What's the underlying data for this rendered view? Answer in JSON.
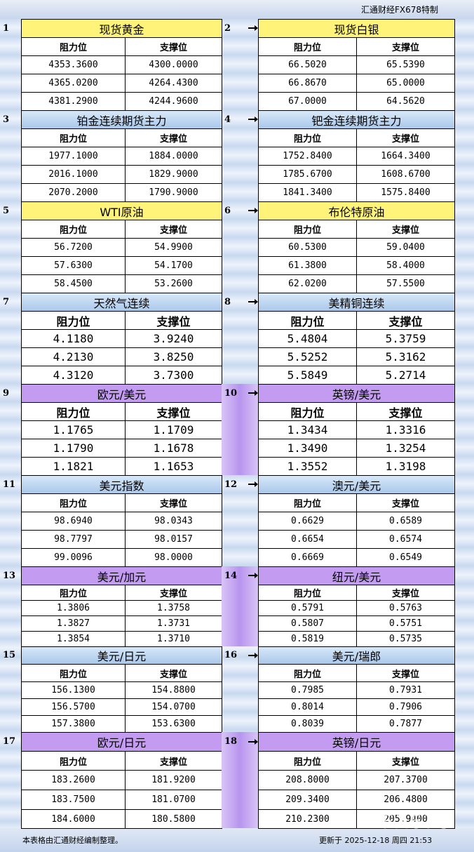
{
  "header": {
    "title": "汇通财经FX678特制"
  },
  "blocks": [
    {
      "number": "1",
      "title": "现货黄金",
      "color": "#fff37a",
      "headers": [
        "阻力位",
        "支撑位"
      ],
      "rows": [
        [
          "4353.3600",
          "4300.0000"
        ],
        [
          "4365.0200",
          "4264.4300"
        ],
        [
          "4381.2900",
          "4244.9600"
        ]
      ]
    },
    {
      "number": "2",
      "title": "现货白银",
      "color": "#fff37a",
      "headers": [
        "阻力位",
        "支撑位"
      ],
      "rows": [
        [
          "66.5020",
          "65.5390"
        ],
        [
          "66.8670",
          "65.0000"
        ],
        [
          "67.0000",
          "64.5620"
        ]
      ]
    },
    {
      "number": "3",
      "title": "铂金连续期货主力",
      "color": "#b9d6f2",
      "headers": [
        "阻力位",
        "支撑位"
      ],
      "rows": [
        [
          "1977.1000",
          "1884.0000"
        ],
        [
          "2016.1000",
          "1829.9000"
        ],
        [
          "2070.2000",
          "1790.9000"
        ]
      ]
    },
    {
      "number": "4",
      "title": "钯金连续期货主力",
      "color": "#b9d6f2",
      "headers": [
        "阻力位",
        "支撑位"
      ],
      "rows": [
        [
          "1752.8400",
          "1664.3400"
        ],
        [
          "1785.6700",
          "1608.6700"
        ],
        [
          "1841.3400",
          "1575.8400"
        ]
      ]
    },
    {
      "number": "5",
      "title": "WTI原油",
      "color": "#fff37a",
      "headers": [
        "阻力位",
        "支撑位"
      ],
      "rows": [
        [
          "56.7200",
          "54.9900"
        ],
        [
          "57.6300",
          "54.1700"
        ],
        [
          "58.4500",
          "53.2600"
        ]
      ]
    },
    {
      "number": "6",
      "title": "布伦特原油",
      "color": "#fff37a",
      "headers": [
        "阻力位",
        "支撑位"
      ],
      "rows": [
        [
          "60.5300",
          "59.0400"
        ],
        [
          "61.3800",
          "58.4000"
        ],
        [
          "62.0200",
          "57.5500"
        ]
      ]
    },
    {
      "number": "7",
      "title": "天然气连续",
      "color": "#b9d6f2",
      "headers": [
        "阻力位",
        "支撑位"
      ],
      "rows": [
        [
          "4.1180",
          "3.9240"
        ],
        [
          "4.2130",
          "3.8250"
        ],
        [
          "4.3120",
          "3.7300"
        ]
      ]
    },
    {
      "number": "8",
      "title": "美精铜连续",
      "color": "#b9d6f2",
      "headers": [
        "阻力位",
        "支撑位"
      ],
      "rows": [
        [
          "5.4804",
          "5.3759"
        ],
        [
          "5.5252",
          "5.3162"
        ],
        [
          "5.5849",
          "5.2714"
        ]
      ]
    },
    {
      "number": "9",
      "title": "欧元/美元",
      "color": "#c39cf2",
      "headers": [
        "阻力位",
        "支撑位"
      ],
      "rows": [
        [
          "1.1765",
          "1.1709"
        ],
        [
          "1.1790",
          "1.1678"
        ],
        [
          "1.1821",
          "1.1653"
        ]
      ]
    },
    {
      "number": "10",
      "title": "英镑/美元",
      "color": "#c39cf2",
      "headers": [
        "阻力位",
        "支撑位"
      ],
      "rows": [
        [
          "1.3434",
          "1.3316"
        ],
        [
          "1.3490",
          "1.3254"
        ],
        [
          "1.3552",
          "1.3198"
        ]
      ]
    },
    {
      "number": "11",
      "title": "美元指数",
      "color": "#b9d6f2",
      "headers": [
        "阻力位",
        "支撑位"
      ],
      "rows": [
        [
          "98.6940",
          "98.0343"
        ],
        [
          "98.7797",
          "98.0157"
        ],
        [
          "99.0096",
          "98.0000"
        ]
      ]
    },
    {
      "number": "12",
      "title": "澳元/美元",
      "color": "#b9d6f2",
      "headers": [
        "阻力位",
        "支撑位"
      ],
      "rows": [
        [
          "0.6629",
          "0.6589"
        ],
        [
          "0.6654",
          "0.6574"
        ],
        [
          "0.6669",
          "0.6549"
        ]
      ]
    },
    {
      "number": "13",
      "title": "美元/加元",
      "color": "#c39cf2",
      "headers": [
        "阻力位",
        "支撑位"
      ],
      "rows": [
        [
          "1.3806",
          "1.3758"
        ],
        [
          "1.3827",
          "1.3731"
        ],
        [
          "1.3854",
          "1.3710"
        ]
      ]
    },
    {
      "number": "14",
      "title": "纽元/美元",
      "color": "#c39cf2",
      "headers": [
        "阻力位",
        "支撑位"
      ],
      "rows": [
        [
          "0.5791",
          "0.5763"
        ],
        [
          "0.5807",
          "0.5751"
        ],
        [
          "0.5819",
          "0.5735"
        ]
      ]
    },
    {
      "number": "15",
      "title": "美元/日元",
      "color": "#b9d6f2",
      "headers": [
        "阻力位",
        "支撑位"
      ],
      "rows": [
        [
          "156.1300",
          "154.8800"
        ],
        [
          "156.5700",
          "154.0700"
        ],
        [
          "157.3800",
          "153.6300"
        ]
      ]
    },
    {
      "number": "16",
      "title": "美元/瑞郎",
      "color": "#b9d6f2",
      "headers": [
        "阻力位",
        "支撑位"
      ],
      "rows": [
        [
          "0.7985",
          "0.7931"
        ],
        [
          "0.8014",
          "0.7906"
        ],
        [
          "0.8039",
          "0.7877"
        ]
      ]
    },
    {
      "number": "17",
      "title": "欧元/日元",
      "color": "#c39cf2",
      "headers": [
        "阻力位",
        "支撑位"
      ],
      "rows": [
        [
          "183.2600",
          "181.9200"
        ],
        [
          "183.7500",
          "181.0700"
        ],
        [
          "184.6000",
          "180.5800"
        ]
      ]
    },
    {
      "number": "18",
      "title": "英镑/日元",
      "color": "#c39cf2",
      "headers": [
        "阻力位",
        "支撑位"
      ],
      "rows": [
        [
          "208.8000",
          "207.3700"
        ],
        [
          "209.3400",
          "206.4800"
        ],
        [
          "210.2300",
          "205.9400"
        ]
      ]
    }
  ],
  "footer": {
    "note": "本表格由汇通财经编制整理。",
    "updated": "更新于 2025-12-18 周四 21:53",
    "watermark": "FX678"
  }
}
